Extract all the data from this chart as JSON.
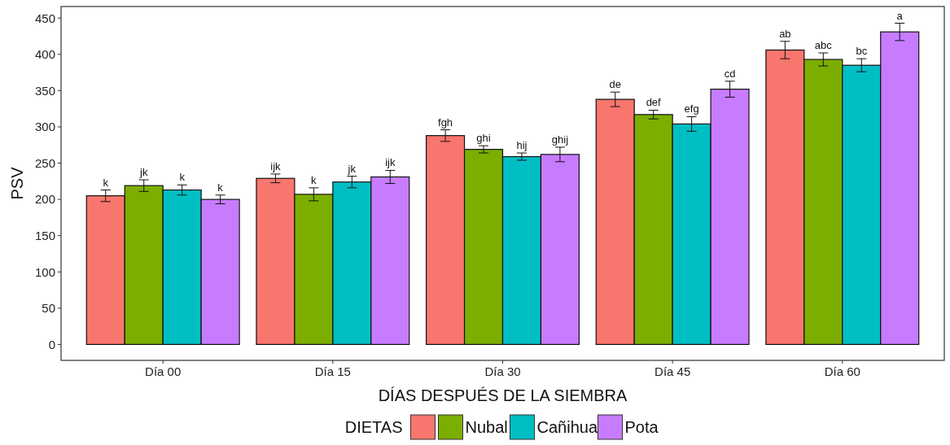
{
  "chart_data": {
    "type": "bar",
    "xlabel": "DÍAS DESPUÉS DE LA SIEMBRA",
    "ylabel": "PSV",
    "legend_title": "DIETAS",
    "legend": "bottom",
    "grid": false,
    "categories": [
      "Día 00",
      "Día 15",
      "Día 30",
      "Día 45",
      "Día 60"
    ],
    "ylim": [
      -22,
      466
    ],
    "yticks": [
      0,
      50,
      100,
      150,
      200,
      250,
      300,
      350,
      400,
      450
    ],
    "series": [
      {
        "color": "#f8766d",
        "values": [
          205,
          229,
          288,
          338,
          406
        ],
        "errors": [
          8,
          6,
          8,
          10,
          12
        ],
        "value_labels": [
          "k",
          "ijk",
          "fgh",
          "de",
          "ab"
        ]
      },
      {
        "name": "Nubal",
        "color": "#7cae00",
        "values": [
          219,
          207,
          269,
          317,
          393
        ],
        "errors": [
          8,
          9,
          5,
          6,
          9
        ],
        "value_labels": [
          "jk",
          "k",
          "ghi",
          "def",
          "abc"
        ]
      },
      {
        "name": "Cañihua",
        "color": "#00bfc4",
        "values": [
          213,
          224,
          259,
          304,
          385
        ],
        "errors": [
          7,
          8,
          5,
          10,
          9
        ],
        "value_labels": [
          "k",
          "jk",
          "hij",
          "efg",
          "bc"
        ]
      },
      {
        "name": "Pota",
        "color": "#c77cff",
        "values": [
          200,
          231,
          262,
          352,
          431
        ],
        "errors": [
          6,
          9,
          10,
          11,
          12
        ],
        "value_labels": [
          "k",
          "ijk",
          "ghij",
          "cd",
          "a"
        ]
      }
    ]
  }
}
